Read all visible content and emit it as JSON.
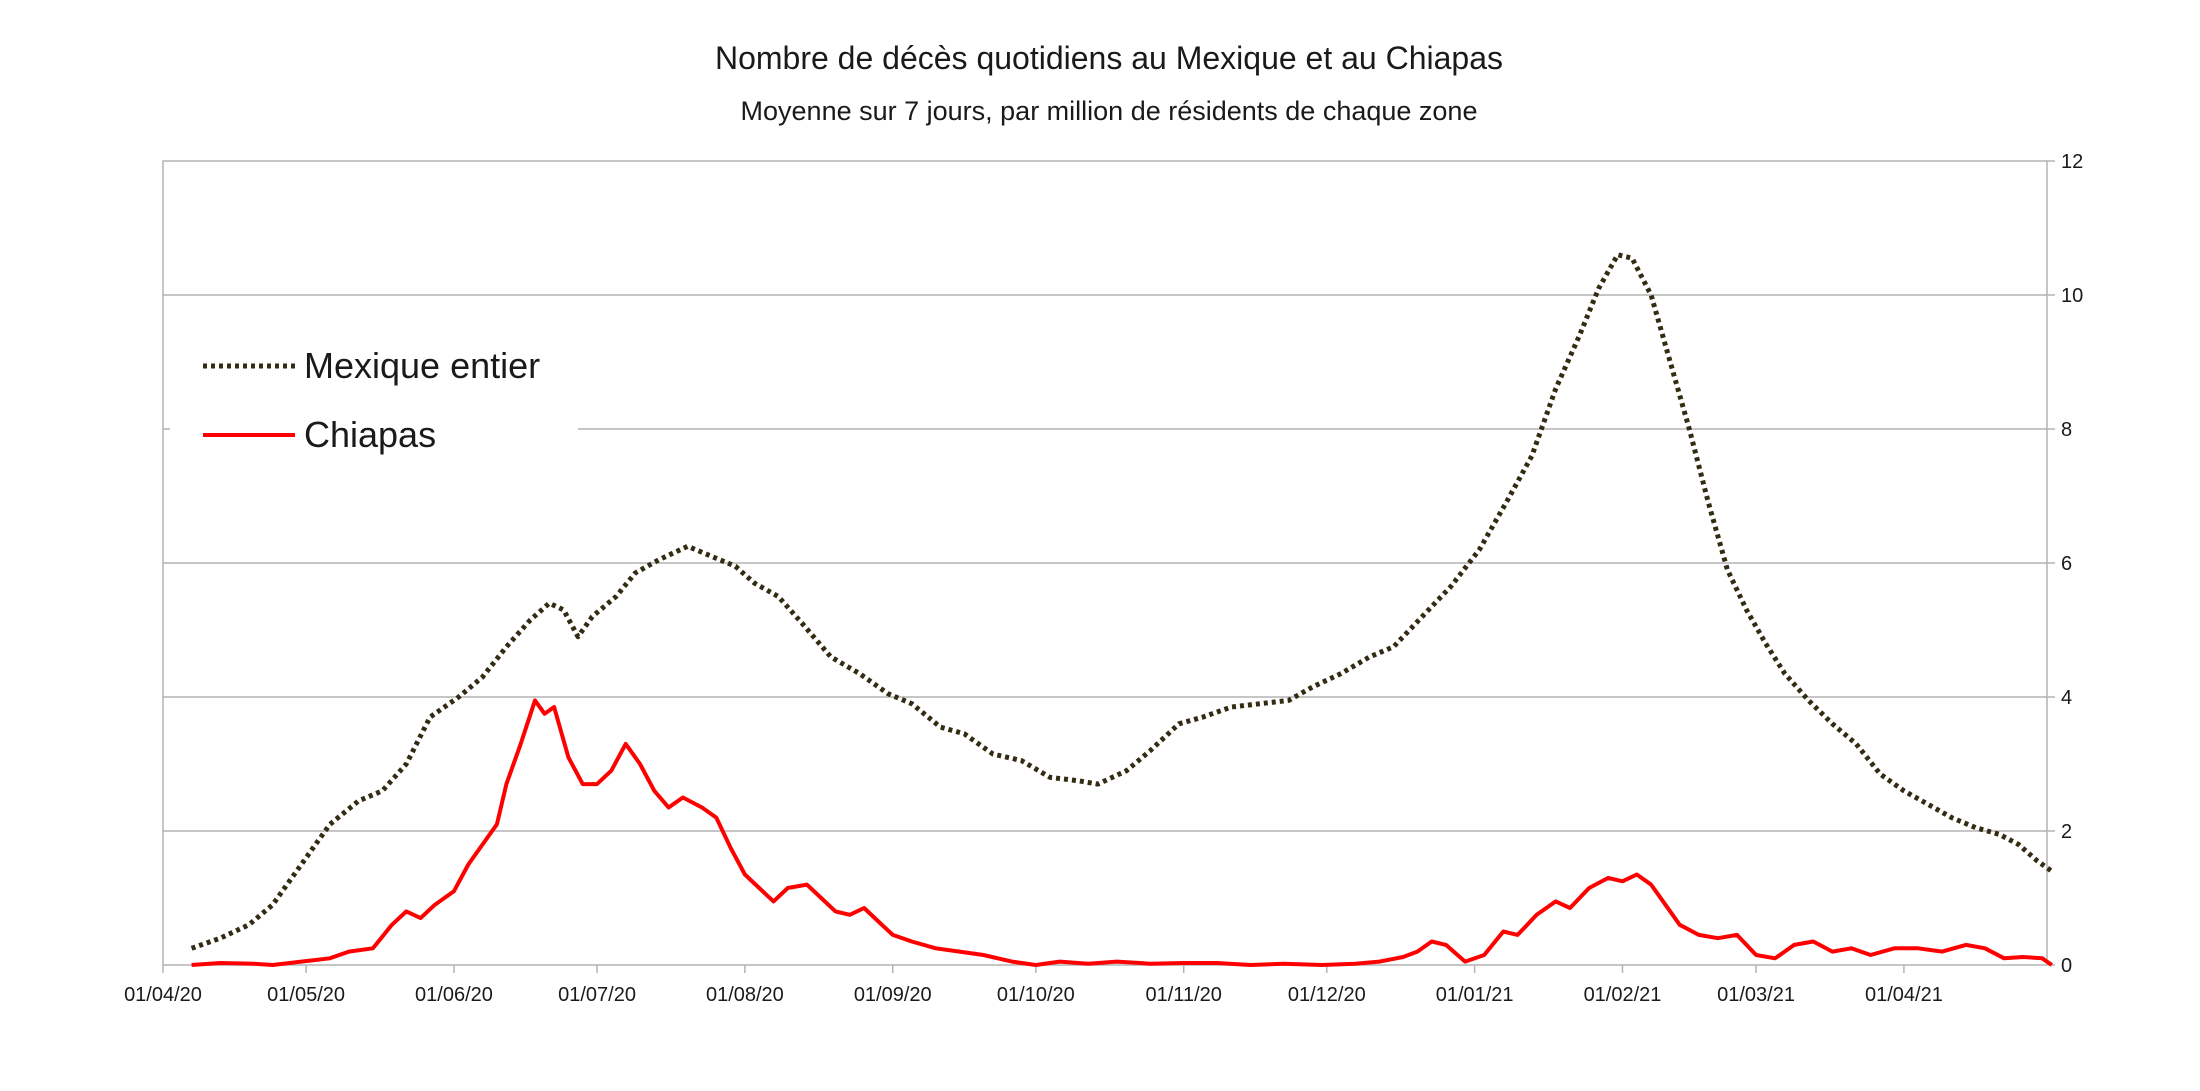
{
  "chart_data": {
    "type": "line",
    "title": "Nombre de décès quotidiens au Mexique et au Chiapas",
    "subtitle": "Moyenne sur 7 jours, par million de résidents de chaque zone",
    "x_start": "2020-04-01",
    "x_ticks": [
      "01/04/20",
      "01/05/20",
      "01/06/20",
      "01/07/20",
      "01/08/20",
      "01/09/20",
      "01/10/20",
      "01/11/20",
      "01/12/20",
      "01/01/21",
      "01/02/21",
      "01/03/21",
      "01/04/21"
    ],
    "x_tick_dates": [
      "2020-04-01",
      "2020-05-01",
      "2020-06-01",
      "2020-07-01",
      "2020-08-01",
      "2020-09-01",
      "2020-10-01",
      "2020-11-01",
      "2020-12-01",
      "2021-01-01",
      "2021-02-01",
      "2021-03-01",
      "2021-04-01"
    ],
    "x_range": [
      "2020-04-01",
      "2021-05-01"
    ],
    "y_axis_side": "right",
    "y_ticks": [
      "0",
      "2",
      "4",
      "6",
      "8",
      "10",
      "12"
    ],
    "ylim": [
      0,
      12
    ],
    "grid": "horizontal",
    "legend_position": "top-left",
    "series": [
      {
        "name": "Mexique entier",
        "color": "#332b12",
        "style": "dotted",
        "points": [
          [
            "2020-04-07",
            0.25
          ],
          [
            "2020-04-13",
            0.4
          ],
          [
            "2020-04-19",
            0.6
          ],
          [
            "2020-04-24",
            0.9
          ],
          [
            "2020-04-30",
            1.5
          ],
          [
            "2020-05-06",
            2.1
          ],
          [
            "2020-05-12",
            2.45
          ],
          [
            "2020-05-17",
            2.6
          ],
          [
            "2020-05-22",
            3.0
          ],
          [
            "2020-05-27",
            3.7
          ],
          [
            "2020-06-02",
            4.0
          ],
          [
            "2020-06-07",
            4.3
          ],
          [
            "2020-06-12",
            4.75
          ],
          [
            "2020-06-17",
            5.15
          ],
          [
            "2020-06-21",
            5.4
          ],
          [
            "2020-06-24",
            5.3
          ],
          [
            "2020-06-27",
            4.9
          ],
          [
            "2020-06-30",
            5.2
          ],
          [
            "2020-07-05",
            5.5
          ],
          [
            "2020-07-09",
            5.85
          ],
          [
            "2020-07-14",
            6.05
          ],
          [
            "2020-07-20",
            6.25
          ],
          [
            "2020-07-25",
            6.1
          ],
          [
            "2020-07-30",
            5.95
          ],
          [
            "2020-08-03",
            5.7
          ],
          [
            "2020-08-08",
            5.5
          ],
          [
            "2020-08-13",
            5.1
          ],
          [
            "2020-08-19",
            4.6
          ],
          [
            "2020-08-25",
            4.35
          ],
          [
            "2020-08-31",
            4.05
          ],
          [
            "2020-09-05",
            3.9
          ],
          [
            "2020-09-11",
            3.55
          ],
          [
            "2020-09-16",
            3.45
          ],
          [
            "2020-09-22",
            3.15
          ],
          [
            "2020-09-28",
            3.05
          ],
          [
            "2020-10-04",
            2.8
          ],
          [
            "2020-10-10",
            2.75
          ],
          [
            "2020-10-14",
            2.7
          ],
          [
            "2020-10-20",
            2.9
          ],
          [
            "2020-10-25",
            3.2
          ],
          [
            "2020-10-31",
            3.6
          ],
          [
            "2020-11-05",
            3.7
          ],
          [
            "2020-11-11",
            3.85
          ],
          [
            "2020-11-17",
            3.9
          ],
          [
            "2020-11-23",
            3.95
          ],
          [
            "2020-11-28",
            4.15
          ],
          [
            "2020-12-04",
            4.35
          ],
          [
            "2020-12-10",
            4.6
          ],
          [
            "2020-12-15",
            4.75
          ],
          [
            "2020-12-21",
            5.2
          ],
          [
            "2020-12-27",
            5.65
          ],
          [
            "2021-01-02",
            6.2
          ],
          [
            "2021-01-08",
            6.95
          ],
          [
            "2021-01-13",
            7.6
          ],
          [
            "2021-01-18",
            8.6
          ],
          [
            "2021-01-23",
            9.4
          ],
          [
            "2021-01-27",
            10.1
          ],
          [
            "2021-01-31",
            10.6
          ],
          [
            "2021-02-03",
            10.55
          ],
          [
            "2021-02-07",
            10.0
          ],
          [
            "2021-02-11",
            9.0
          ],
          [
            "2021-02-15",
            8.0
          ],
          [
            "2021-02-19",
            6.9
          ],
          [
            "2021-02-23",
            5.9
          ],
          [
            "2021-02-27",
            5.3
          ],
          [
            "2021-03-03",
            4.8
          ],
          [
            "2021-03-07",
            4.35
          ],
          [
            "2021-03-12",
            3.95
          ],
          [
            "2021-03-17",
            3.6
          ],
          [
            "2021-03-22",
            3.3
          ],
          [
            "2021-03-27",
            2.85
          ],
          [
            "2021-04-01",
            2.6
          ],
          [
            "2021-04-06",
            2.4
          ],
          [
            "2021-04-11",
            2.2
          ],
          [
            "2021-04-16",
            2.05
          ],
          [
            "2021-04-21",
            1.95
          ],
          [
            "2021-04-25",
            1.8
          ],
          [
            "2021-04-29",
            1.55
          ],
          [
            "2021-05-02",
            1.4
          ]
        ]
      },
      {
        "name": "Chiapas",
        "color": "#ff0000",
        "style": "solid",
        "points": [
          [
            "2020-04-07",
            0.0
          ],
          [
            "2020-04-13",
            0.03
          ],
          [
            "2020-04-20",
            0.02
          ],
          [
            "2020-04-24",
            0.0
          ],
          [
            "2020-04-30",
            0.05
          ],
          [
            "2020-05-06",
            0.1
          ],
          [
            "2020-05-10",
            0.2
          ],
          [
            "2020-05-15",
            0.25
          ],
          [
            "2020-05-19",
            0.6
          ],
          [
            "2020-05-22",
            0.8
          ],
          [
            "2020-05-25",
            0.7
          ],
          [
            "2020-05-28",
            0.9
          ],
          [
            "2020-06-01",
            1.1
          ],
          [
            "2020-06-04",
            1.5
          ],
          [
            "2020-06-07",
            1.8
          ],
          [
            "2020-06-10",
            2.1
          ],
          [
            "2020-06-12",
            2.7
          ],
          [
            "2020-06-15",
            3.3
          ],
          [
            "2020-06-18",
            3.95
          ],
          [
            "2020-06-20",
            3.75
          ],
          [
            "2020-06-22",
            3.85
          ],
          [
            "2020-06-25",
            3.1
          ],
          [
            "2020-06-28",
            2.7
          ],
          [
            "2020-07-01",
            2.7
          ],
          [
            "2020-07-04",
            2.9
          ],
          [
            "2020-07-07",
            3.3
          ],
          [
            "2020-07-10",
            3.0
          ],
          [
            "2020-07-13",
            2.6
          ],
          [
            "2020-07-16",
            2.35
          ],
          [
            "2020-07-19",
            2.5
          ],
          [
            "2020-07-23",
            2.35
          ],
          [
            "2020-07-26",
            2.2
          ],
          [
            "2020-07-29",
            1.75
          ],
          [
            "2020-08-01",
            1.35
          ],
          [
            "2020-08-04",
            1.15
          ],
          [
            "2020-08-07",
            0.95
          ],
          [
            "2020-08-10",
            1.15
          ],
          [
            "2020-08-14",
            1.2
          ],
          [
            "2020-08-17",
            1.0
          ],
          [
            "2020-08-20",
            0.8
          ],
          [
            "2020-08-23",
            0.75
          ],
          [
            "2020-08-26",
            0.85
          ],
          [
            "2020-08-29",
            0.65
          ],
          [
            "2020-09-01",
            0.45
          ],
          [
            "2020-09-05",
            0.35
          ],
          [
            "2020-09-10",
            0.25
          ],
          [
            "2020-09-15",
            0.2
          ],
          [
            "2020-09-20",
            0.15
          ],
          [
            "2020-09-26",
            0.05
          ],
          [
            "2020-10-01",
            0.0
          ],
          [
            "2020-10-06",
            0.05
          ],
          [
            "2020-10-12",
            0.02
          ],
          [
            "2020-10-18",
            0.05
          ],
          [
            "2020-10-25",
            0.02
          ],
          [
            "2020-11-01",
            0.03
          ],
          [
            "2020-11-08",
            0.03
          ],
          [
            "2020-11-15",
            0.0
          ],
          [
            "2020-11-22",
            0.02
          ],
          [
            "2020-11-30",
            0.0
          ],
          [
            "2020-12-07",
            0.02
          ],
          [
            "2020-12-12",
            0.05
          ],
          [
            "2020-12-17",
            0.12
          ],
          [
            "2020-12-20",
            0.2
          ],
          [
            "2020-12-23",
            0.35
          ],
          [
            "2020-12-26",
            0.3
          ],
          [
            "2020-12-30",
            0.05
          ],
          [
            "2021-01-03",
            0.15
          ],
          [
            "2021-01-07",
            0.5
          ],
          [
            "2021-01-10",
            0.45
          ],
          [
            "2021-01-14",
            0.75
          ],
          [
            "2021-01-18",
            0.95
          ],
          [
            "2021-01-21",
            0.85
          ],
          [
            "2021-01-25",
            1.15
          ],
          [
            "2021-01-29",
            1.3
          ],
          [
            "2021-02-01",
            1.25
          ],
          [
            "2021-02-04",
            1.35
          ],
          [
            "2021-02-07",
            1.2
          ],
          [
            "2021-02-10",
            0.9
          ],
          [
            "2021-02-13",
            0.6
          ],
          [
            "2021-02-17",
            0.45
          ],
          [
            "2021-02-21",
            0.4
          ],
          [
            "2021-02-25",
            0.45
          ],
          [
            "2021-03-01",
            0.15
          ],
          [
            "2021-03-05",
            0.1
          ],
          [
            "2021-03-09",
            0.3
          ],
          [
            "2021-03-13",
            0.35
          ],
          [
            "2021-03-17",
            0.2
          ],
          [
            "2021-03-21",
            0.25
          ],
          [
            "2021-03-25",
            0.15
          ],
          [
            "2021-03-30",
            0.25
          ],
          [
            "2021-04-04",
            0.25
          ],
          [
            "2021-04-09",
            0.2
          ],
          [
            "2021-04-14",
            0.3
          ],
          [
            "2021-04-18",
            0.25
          ],
          [
            "2021-04-22",
            0.1
          ],
          [
            "2021-04-26",
            0.12
          ],
          [
            "2021-04-30",
            0.1
          ],
          [
            "2021-05-02",
            0.0
          ]
        ]
      }
    ]
  }
}
